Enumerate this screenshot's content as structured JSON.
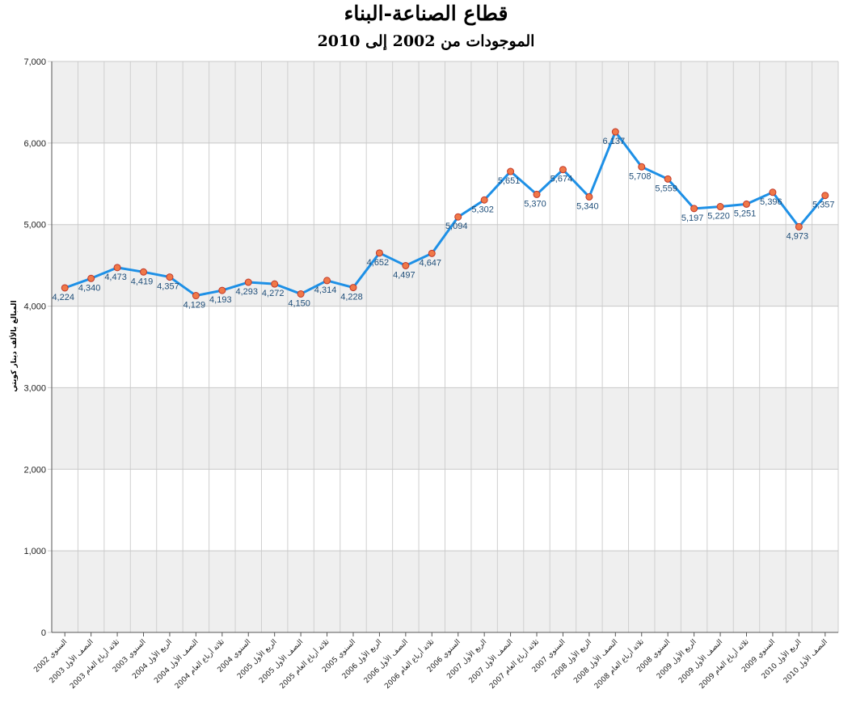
{
  "chart_data": {
    "type": "line",
    "title": "قطاع الصناعة-البناء",
    "subtitle": "الموجودات من 2002 إلى 2010",
    "ylabel": "المبالغ بالألف دينار كويتي",
    "ylim": [
      0,
      7000
    ],
    "yticks": [
      "0",
      "1,000",
      "2,000",
      "3,000",
      "4,000",
      "5,000",
      "6,000",
      "7,000"
    ],
    "grid": true,
    "colors": {
      "line": "#1e90e6",
      "marker_fill": "#f07848",
      "marker_stroke": "#c0392b",
      "band": "#efefef"
    },
    "categories": [
      "السنوي 2002",
      "النصف الأول 2003",
      "ثلاثة أرباع العام 2003",
      "السنوي 2003",
      "الربع الأول 2004",
      "النصف الأول 2004",
      "ثلاثة أرباع العام 2004",
      "السنوي 2004",
      "الربع الأول 2005",
      "النصف الأول 2005",
      "ثلاثة أرباع العام 2005",
      "السنوي 2005",
      "الربع الأول 2006",
      "النصف الأول 2006",
      "ثلاثة أرباع العام 2006",
      "السنوي 2006",
      "الربع الأول 2007",
      "النصف الأول 2007",
      "ثلاثة أرباع العام 2007",
      "السنوي 2007",
      "الربع الأول 2008",
      "النصف الأول 2008",
      "ثلاثة أرباع العام 2008",
      "السنوي 2008",
      "الربع الأول 2009",
      "النصف الأول 2009",
      "ثلاثة أرباع العام 2009",
      "السنوي 2009",
      "الربع الأول 2010",
      "النصف الأول 2010"
    ],
    "values": [
      4224,
      4340,
      4473,
      4419,
      4357,
      4129,
      4193,
      4293,
      4272,
      4150,
      4314,
      4228,
      4652,
      4497,
      4647,
      5094,
      5302,
      5651,
      5370,
      5674,
      5340,
      6137,
      5708,
      5559,
      5197,
      5220,
      5251,
      5396,
      4973,
      5357
    ],
    "data_labels": [
      "4,224",
      "4,340",
      "4,473",
      "4,419",
      "4,357",
      "4,129",
      "4,193",
      "4,293",
      "4,272",
      "4,150",
      "4,314",
      "4,228",
      "4,652",
      "4,497",
      "4,647",
      "5,094",
      "5,302",
      "5,651",
      "5,370",
      "5,674",
      "5,340",
      "6,137",
      "5,708",
      "5,559",
      "5,197",
      "5,220",
      "5,251",
      "5,396",
      "4,973",
      "5,357"
    ]
  }
}
